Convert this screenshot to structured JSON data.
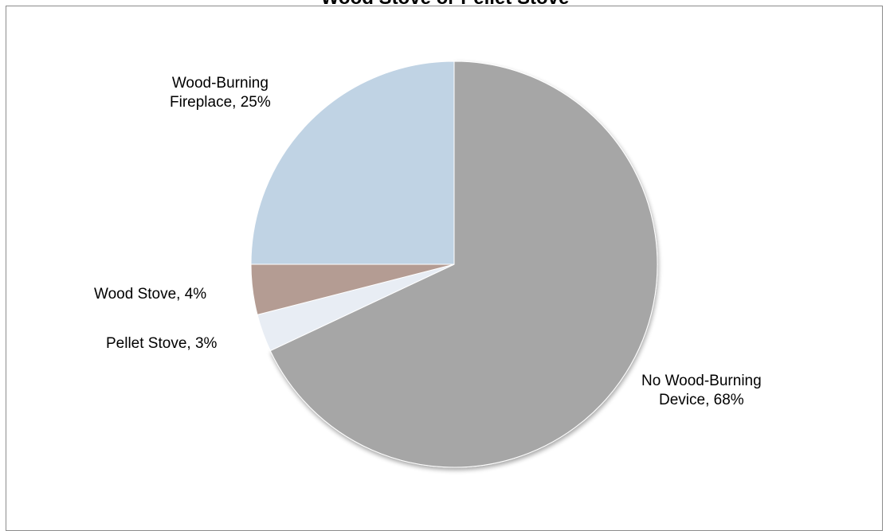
{
  "chart_data": {
    "type": "pie",
    "title": "Wood Stove or Pellet Stove",
    "slices": [
      {
        "label": "No Wood-Burning Device",
        "value": 68,
        "display": "No Wood-Burning\nDevice, 68%",
        "color": "#a6a6a6"
      },
      {
        "label": "Pellet Stove",
        "value": 3,
        "display": "Pellet Stove, 3%",
        "color": "#e8edf4"
      },
      {
        "label": "Wood Stove",
        "value": 4,
        "display": "Wood Stove, 4%",
        "color": "#b49c93"
      },
      {
        "label": "Wood-Burning Fireplace",
        "value": 25,
        "display": "Wood-Burning\nFireplace, 25%",
        "color": "#c0d3e4"
      }
    ],
    "start_angle": "12 o'clock",
    "direction": "clockwise",
    "legend": "none",
    "labels": "outside"
  }
}
